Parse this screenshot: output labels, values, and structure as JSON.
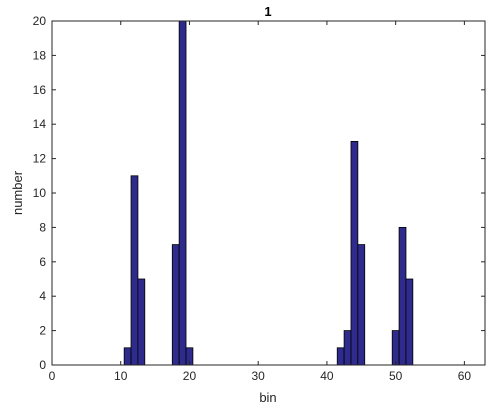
{
  "chart_data": {
    "type": "bar",
    "title": "1",
    "xlabel": "bin",
    "ylabel": "number",
    "xlim": [
      0,
      63
    ],
    "ylim": [
      0,
      20
    ],
    "xticks": [
      0,
      10,
      20,
      30,
      40,
      50,
      60
    ],
    "yticks": [
      0,
      2,
      4,
      6,
      8,
      10,
      12,
      14,
      16,
      18,
      20
    ],
    "grid": false,
    "bar_color": "#2e2b8c",
    "bar_edge_color": "#000000",
    "bars": [
      {
        "x": 11,
        "value": 1
      },
      {
        "x": 12,
        "value": 11
      },
      {
        "x": 13,
        "value": 5
      },
      {
        "x": 18,
        "value": 7
      },
      {
        "x": 19,
        "value": 20
      },
      {
        "x": 20,
        "value": 1
      },
      {
        "x": 42,
        "value": 1
      },
      {
        "x": 43,
        "value": 2
      },
      {
        "x": 44,
        "value": 13
      },
      {
        "x": 45,
        "value": 7
      },
      {
        "x": 50,
        "value": 2
      },
      {
        "x": 51,
        "value": 8
      },
      {
        "x": 52,
        "value": 5
      }
    ]
  }
}
